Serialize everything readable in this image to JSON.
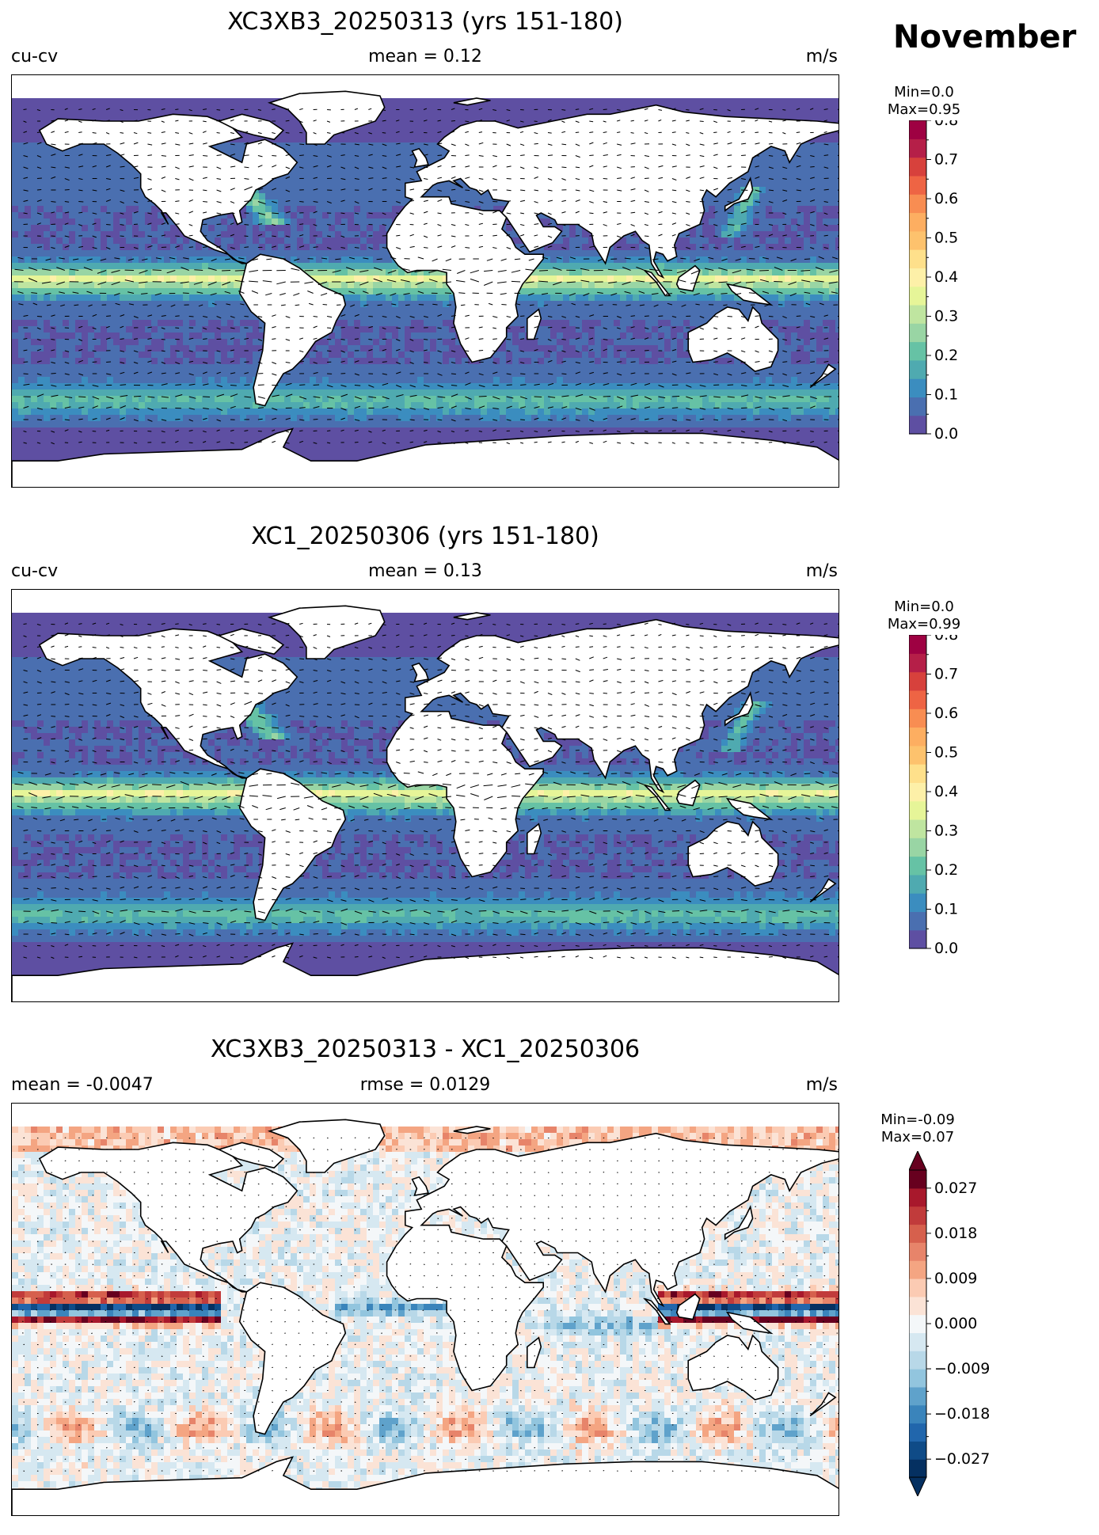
{
  "header": {
    "month": "November"
  },
  "panels": [
    {
      "id": "model1",
      "title": "XC3XB3_20250313 (yrs 151-180)",
      "left_label": "cu-cv",
      "center_label": "mean = 0.12",
      "right_label": "m/s",
      "min_label": "Min=0.0",
      "max_label": "Max=0.95",
      "colorbar": {
        "ticks": [
          "0.0",
          "0.1",
          "0.2",
          "0.3",
          "0.4",
          "0.5",
          "0.6",
          "0.7",
          "0.8"
        ],
        "colors": [
          "#5e4fa2",
          "#4a6fb0",
          "#3b8dbf",
          "#4faab0",
          "#66c2a5",
          "#99d5a4",
          "#bfe5a0",
          "#e6f598",
          "#fdf0a8",
          "#fee08b",
          "#fdc26d",
          "#fdae61",
          "#f88d52",
          "#ee6444",
          "#d7413c",
          "#b51f48",
          "#9e0142"
        ]
      }
    },
    {
      "id": "model2",
      "title": "XC1_20250306 (yrs 151-180)",
      "left_label": "cu-cv",
      "center_label": "mean = 0.13",
      "right_label": "m/s",
      "min_label": "Min=0.0",
      "max_label": "Max=0.99",
      "colorbar": {
        "ticks": [
          "0.0",
          "0.1",
          "0.2",
          "0.3",
          "0.4",
          "0.5",
          "0.6",
          "0.7",
          "0.8"
        ],
        "colors": [
          "#5e4fa2",
          "#4a6fb0",
          "#3b8dbf",
          "#4faab0",
          "#66c2a5",
          "#99d5a4",
          "#bfe5a0",
          "#e6f598",
          "#fdf0a8",
          "#fee08b",
          "#fdc26d",
          "#fdae61",
          "#f88d52",
          "#ee6444",
          "#d7413c",
          "#b51f48",
          "#9e0142"
        ]
      }
    },
    {
      "id": "diff",
      "title": "XC3XB3_20250313 - XC1_20250306",
      "left_label": "mean = -0.0047",
      "center_label": "rmse = 0.0129",
      "right_label": "m/s",
      "min_label": "Min=-0.09",
      "max_label": "Max=0.07",
      "colorbar": {
        "ticks": [
          "−0.027",
          "−0.018",
          "−0.009",
          "0.000",
          "0.009",
          "0.018",
          "0.027"
        ],
        "colors": [
          "#053061",
          "#0f4b87",
          "#2166ac",
          "#3a84bb",
          "#5fa2cb",
          "#92c5de",
          "#b8d8e8",
          "#d6e8f1",
          "#f4f7f9",
          "#fbe3d6",
          "#fbcbb3",
          "#f4a582",
          "#e7846a",
          "#d6604d",
          "#c13b3b",
          "#a8182c",
          "#67001f"
        ]
      }
    }
  ]
}
